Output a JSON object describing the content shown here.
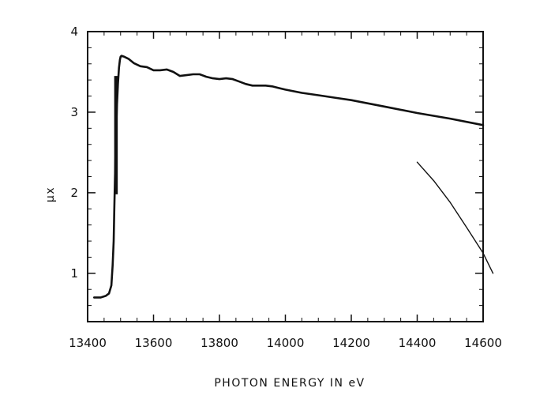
{
  "chart_data": {
    "type": "line",
    "title": "",
    "xlabel": "PHOTON ENERGY IN eV",
    "ylabel": "μx",
    "xlim": [
      13400,
      14600
    ],
    "ylim": [
      0.4,
      4
    ],
    "xticks": [
      13400,
      13600,
      13800,
      14000,
      14200,
      14400,
      14600
    ],
    "xtick_labels": [
      "13400",
      "13600",
      "13800",
      "14000",
      "14200",
      "14400",
      "14600"
    ],
    "yticks": [
      1,
      2,
      3,
      4
    ],
    "ytick_labels": [
      "1",
      "2",
      "3",
      "4"
    ],
    "grid": false,
    "legend": "none",
    "colors": {
      "line": "#111111",
      "axes": "#111111"
    },
    "series": [
      {
        "x": [
          13420,
          13440,
          13455,
          13465,
          13472,
          13476,
          13479,
          13481,
          13483,
          13486,
          13489,
          13492,
          13495,
          13498,
          13500,
          13503,
          13510,
          13525,
          13540,
          13560,
          13580,
          13600,
          13620,
          13640,
          13660,
          13680,
          13700,
          13720,
          13740,
          13760,
          13780,
          13800,
          13820,
          13840,
          13860,
          13880,
          13900,
          13920,
          13940,
          13960,
          13980,
          14000,
          14050,
          14100,
          14150,
          14200,
          14300,
          14400,
          14500,
          14600
        ],
        "y": [
          0.7,
          0.7,
          0.72,
          0.75,
          0.85,
          1.1,
          1.4,
          1.8,
          2.2,
          2.7,
          3.1,
          3.35,
          3.55,
          3.65,
          3.69,
          3.7,
          3.69,
          3.66,
          3.61,
          3.57,
          3.56,
          3.52,
          3.52,
          3.53,
          3.5,
          3.45,
          3.46,
          3.47,
          3.47,
          3.44,
          3.42,
          3.41,
          3.42,
          3.41,
          3.38,
          3.35,
          3.33,
          3.33,
          3.33,
          3.32,
          3.3,
          3.28,
          3.24,
          3.21,
          3.18,
          3.15,
          3.07,
          2.99,
          2.92,
          2.84
        ]
      },
      {
        "x": [
          14400,
          14450,
          14500,
          14550,
          14600,
          14630
        ],
        "y": [
          2.38,
          2.15,
          1.88,
          1.57,
          1.25,
          1.0
        ]
      }
    ],
    "annotations": [
      {
        "type": "vertical-bar",
        "x": 13486,
        "y_range": [
          1.98,
          3.45
        ]
      }
    ]
  }
}
